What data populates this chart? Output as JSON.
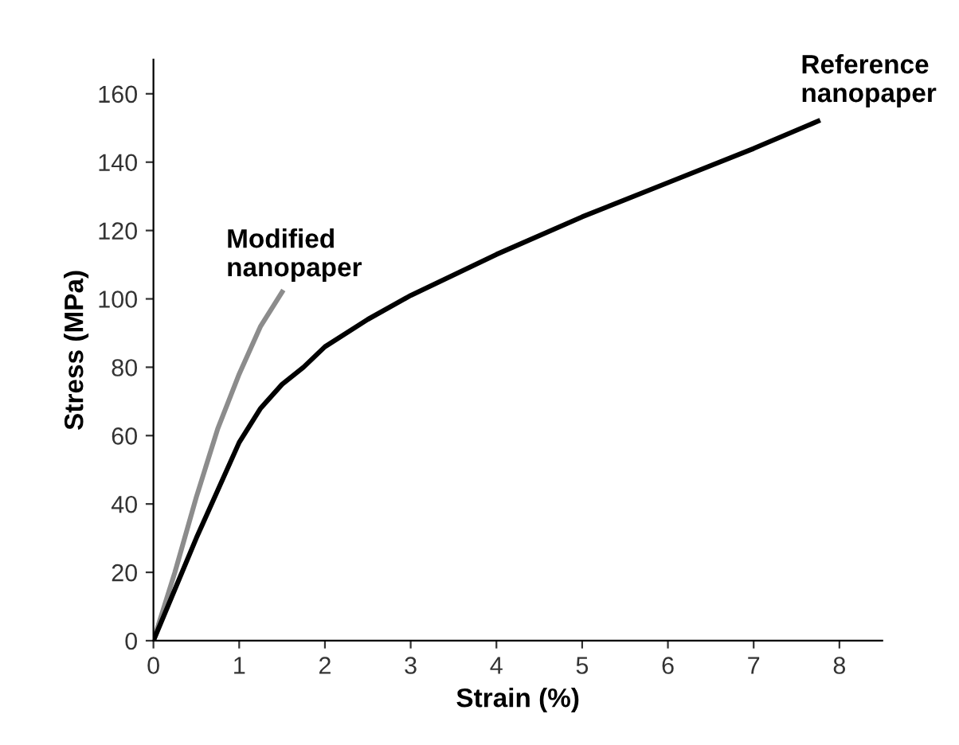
{
  "chart_data": {
    "type": "line",
    "xlabel": "Strain (%)",
    "ylabel": "Stress (MPa)",
    "xlim": [
      0,
      8.5
    ],
    "ylim": [
      0,
      170
    ],
    "xticks": [
      0,
      1,
      2,
      3,
      4,
      5,
      6,
      7,
      8
    ],
    "yticks": [
      0,
      20,
      40,
      60,
      80,
      100,
      120,
      140,
      160
    ],
    "grid": false,
    "legend": false,
    "marker": "none",
    "line_style": "solid",
    "series": [
      {
        "name": "Modified nanopaper",
        "color": "#8c8c8c",
        "x": [
          0,
          0.25,
          0.5,
          0.75,
          1,
          1.25,
          1.5
        ],
        "values": [
          0,
          20,
          42,
          62,
          78,
          92,
          102
        ]
      },
      {
        "name": "Reference nanopaper",
        "color": "#000000",
        "x": [
          0,
          0.25,
          0.5,
          0.75,
          1,
          1.25,
          1.5,
          1.75,
          2,
          2.5,
          3,
          4,
          5,
          6,
          7,
          7.75
        ],
        "values": [
          0,
          15,
          30,
          44,
          58,
          68,
          75,
          80,
          86,
          94,
          101,
          113,
          124,
          134,
          144,
          152
        ]
      }
    ]
  }
}
